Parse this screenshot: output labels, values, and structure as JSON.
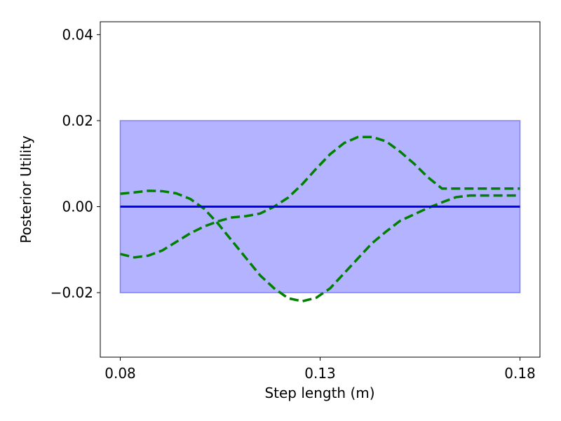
{
  "chart_data": {
    "type": "line",
    "xlabel": "Step length (m)",
    "ylabel": "Posterior Utility",
    "xlim": [
      0.075,
      0.185
    ],
    "ylim": [
      -0.035,
      0.043
    ],
    "xticks": [
      0.08,
      0.13,
      0.18
    ],
    "xtick_labels": [
      "0.08",
      "0.13",
      "0.18"
    ],
    "yticks": [
      -0.02,
      0.0,
      0.02,
      0.04
    ],
    "ytick_labels": [
      "−0.02",
      "0.00",
      "0.02",
      "0.04"
    ],
    "grid": false,
    "band": {
      "x": [
        0.08,
        0.18
      ],
      "y_low": -0.02,
      "y_high": 0.02,
      "color": "#b3b3ff"
    },
    "series": [
      {
        "style": "solid",
        "color": "#0000ff",
        "x": [
          0.08,
          0.18
        ],
        "y": [
          0.0,
          0.0
        ]
      },
      {
        "style": "dashed",
        "color": "#008000",
        "x": [
          0.08,
          0.0835,
          0.087,
          0.0905,
          0.094,
          0.0975,
          0.101,
          0.1045,
          0.108,
          0.1115,
          0.115,
          0.1185,
          0.122,
          0.1255,
          0.129,
          0.1325,
          0.136,
          0.1395,
          0.143,
          0.1465,
          0.15,
          0.1535,
          0.157,
          0.1605,
          0.164,
          0.1675,
          0.171,
          0.1745,
          0.18
        ],
        "y": [
          0.003,
          0.0033,
          0.0037,
          0.0036,
          0.0031,
          0.0018,
          -0.0005,
          -0.004,
          -0.008,
          -0.012,
          -0.016,
          -0.019,
          -0.0213,
          -0.022,
          -0.0212,
          -0.019,
          -0.0155,
          -0.012,
          -0.0085,
          -0.0058,
          -0.0033,
          -0.0018,
          -0.0003,
          0.001,
          0.0022,
          0.0026,
          0.0026,
          0.0026,
          0.0026
        ]
      },
      {
        "style": "dashed",
        "color": "#008000",
        "x": [
          0.08,
          0.0835,
          0.087,
          0.0905,
          0.094,
          0.0975,
          0.101,
          0.1045,
          0.108,
          0.1115,
          0.115,
          0.1185,
          0.122,
          0.1255,
          0.129,
          0.1325,
          0.136,
          0.1395,
          0.143,
          0.1465,
          0.15,
          0.1535,
          0.157,
          0.1605,
          0.164,
          0.1675,
          0.171,
          0.1745,
          0.18
        ],
        "y": [
          -0.011,
          -0.0118,
          -0.0114,
          -0.0102,
          -0.0082,
          -0.0062,
          -0.0046,
          -0.0034,
          -0.0025,
          -0.0022,
          -0.0016,
          0.0,
          0.0021,
          0.0052,
          0.0088,
          0.0122,
          0.0148,
          0.0162,
          0.0162,
          0.0152,
          0.0128,
          0.01,
          0.0068,
          0.0042,
          0.0042,
          0.0042,
          0.0042,
          0.0042,
          0.0042
        ]
      }
    ]
  }
}
